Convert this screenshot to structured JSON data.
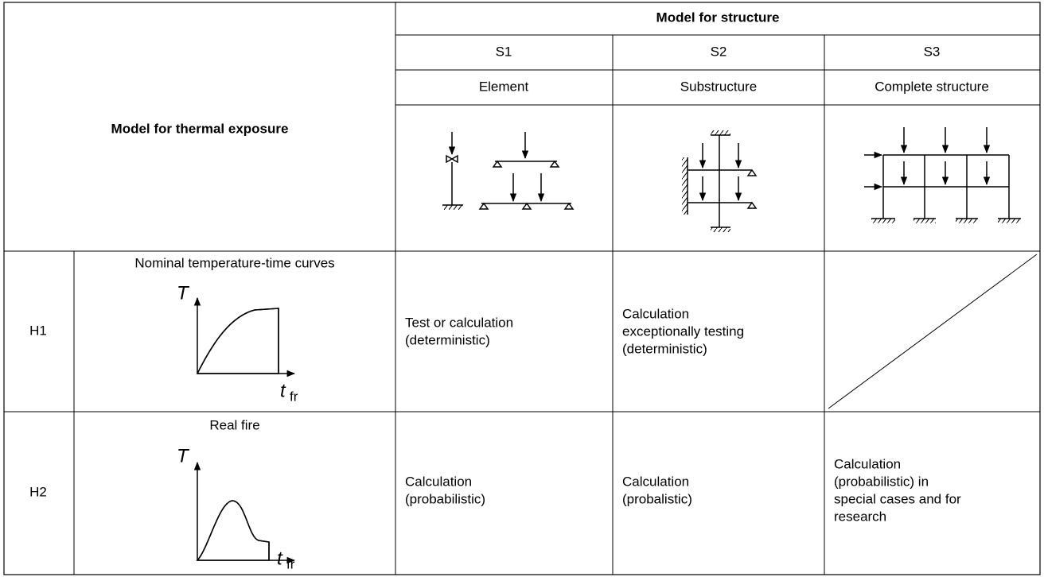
{
  "header": {
    "thermal": "Model for thermal exposure",
    "structure": "Model for structure",
    "columns": [
      {
        "code": "S1",
        "name": "Element"
      },
      {
        "code": "S2",
        "name": "Substructure"
      },
      {
        "code": "S3",
        "name": "Complete structure"
      }
    ]
  },
  "rows": [
    {
      "code": "H1",
      "title": "Nominal temperature-time curves",
      "axis_y": "T",
      "axis_x": "t",
      "axis_x_sub": "fr",
      "cells": [
        [
          "Test or calculation",
          "(deterministic)"
        ],
        [
          "Calculation",
          "exceptionally testing",
          "(deterministic)"
        ]
      ]
    },
    {
      "code": "H2",
      "title": "Real fire",
      "axis_y": "T",
      "axis_x": "t",
      "axis_x_sub": "fr",
      "cells": [
        [
          "Calculation",
          "(probabilistic)"
        ],
        [
          "Calculation",
          "(probalistic)"
        ],
        [
          "Calculation",
          "(probabilistic) in",
          "special cases and for",
          "research"
        ]
      ]
    }
  ]
}
